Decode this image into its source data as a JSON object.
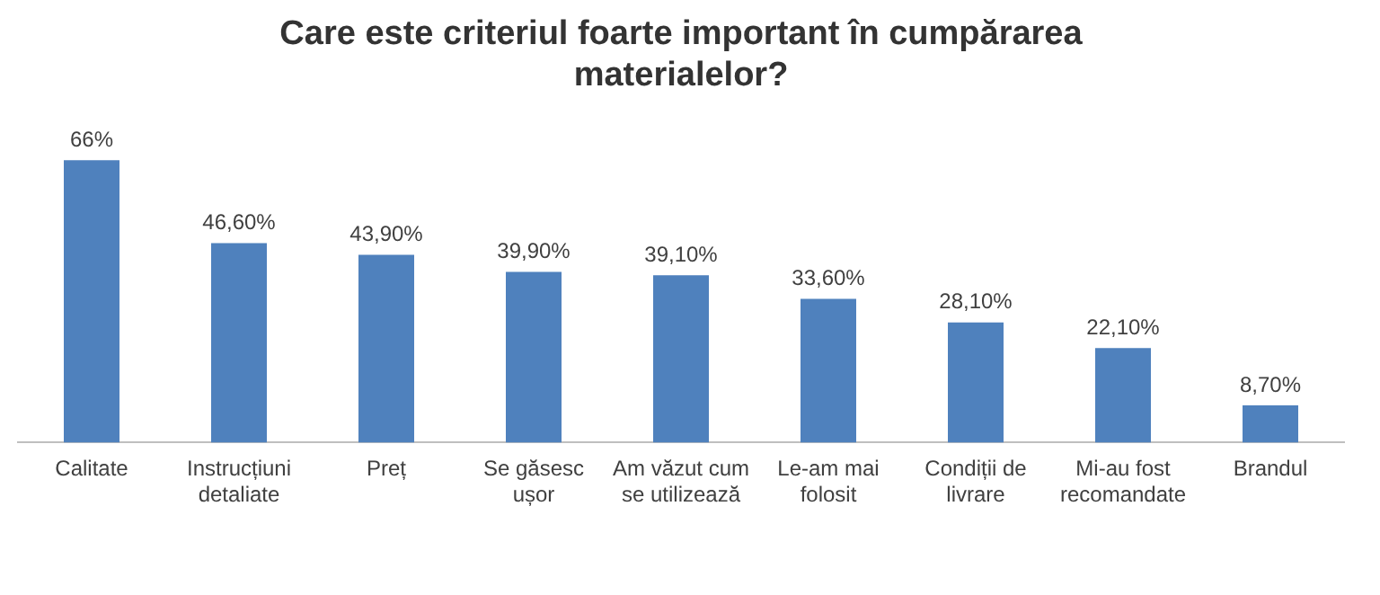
{
  "chart_data": {
    "type": "bar",
    "title": "Care este criteriul foarte important în cumpărarea materialelor?",
    "categories": [
      "Calitate",
      "Instrucțiuni detaliate",
      "Preț",
      "Se găsesc ușor",
      "Am văzut cum se utilizează",
      "Le-am mai folosit",
      "Condiții de livrare",
      "Mi-au fost recomandate",
      "Brandul"
    ],
    "values": [
      66,
      46.6,
      43.9,
      39.9,
      39.1,
      33.6,
      28.1,
      22.1,
      8.7
    ],
    "value_labels": [
      "66%",
      "46,60%",
      "43,90%",
      "39,90%",
      "39,10%",
      "33,60%",
      "28,10%",
      "22,10%",
      "8,70%"
    ],
    "color": "#4f81bd",
    "grid": false,
    "legend": false
  }
}
